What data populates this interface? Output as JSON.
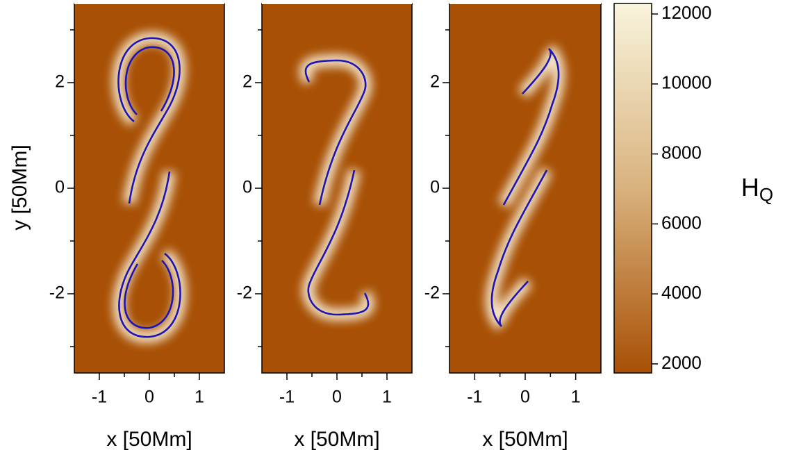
{
  "chart_data": [
    {
      "type": "heatmap",
      "xlabel": "x [50Mm]",
      "ylabel": "y [50Mm]",
      "xlim": [
        -1.5,
        1.5
      ],
      "ylim": [
        -3.5,
        3.5
      ],
      "xticks": [
        -1,
        0,
        1
      ],
      "yticks": [
        -2,
        0,
        2
      ],
      "xminor": [
        -0.5,
        0.5
      ],
      "yminor": [
        -3,
        -1,
        1,
        3
      ]
    },
    {
      "type": "heatmap",
      "xlabel": "x [50Mm]",
      "xlim": [
        -1.5,
        1.5
      ],
      "ylim": [
        -3.5,
        3.5
      ],
      "xticks": [
        -1,
        0,
        1
      ],
      "yticks": [
        -2,
        0,
        2
      ],
      "xminor": [
        -0.5,
        0.5
      ],
      "yminor": [
        -3,
        -1,
        1,
        3
      ]
    },
    {
      "type": "heatmap",
      "xlabel": "x [50Mm]",
      "xlim": [
        -1.5,
        1.5
      ],
      "ylim": [
        -3.5,
        3.5
      ],
      "xticks": [
        -1,
        0,
        1
      ],
      "yticks": [
        -2,
        0,
        2
      ],
      "xminor": [
        -0.5,
        0.5
      ],
      "yminor": [
        -3,
        -1,
        1,
        3
      ]
    },
    {
      "type": "colorbar",
      "label": "H",
      "label_subscript": "Q",
      "clim": [
        1740,
        12300
      ],
      "cticks": [
        2000,
        4000,
        6000,
        8000,
        10000,
        12000
      ],
      "colors": [
        "#a85005",
        "#d9b27e",
        "#f8f4dc"
      ]
    }
  ]
}
